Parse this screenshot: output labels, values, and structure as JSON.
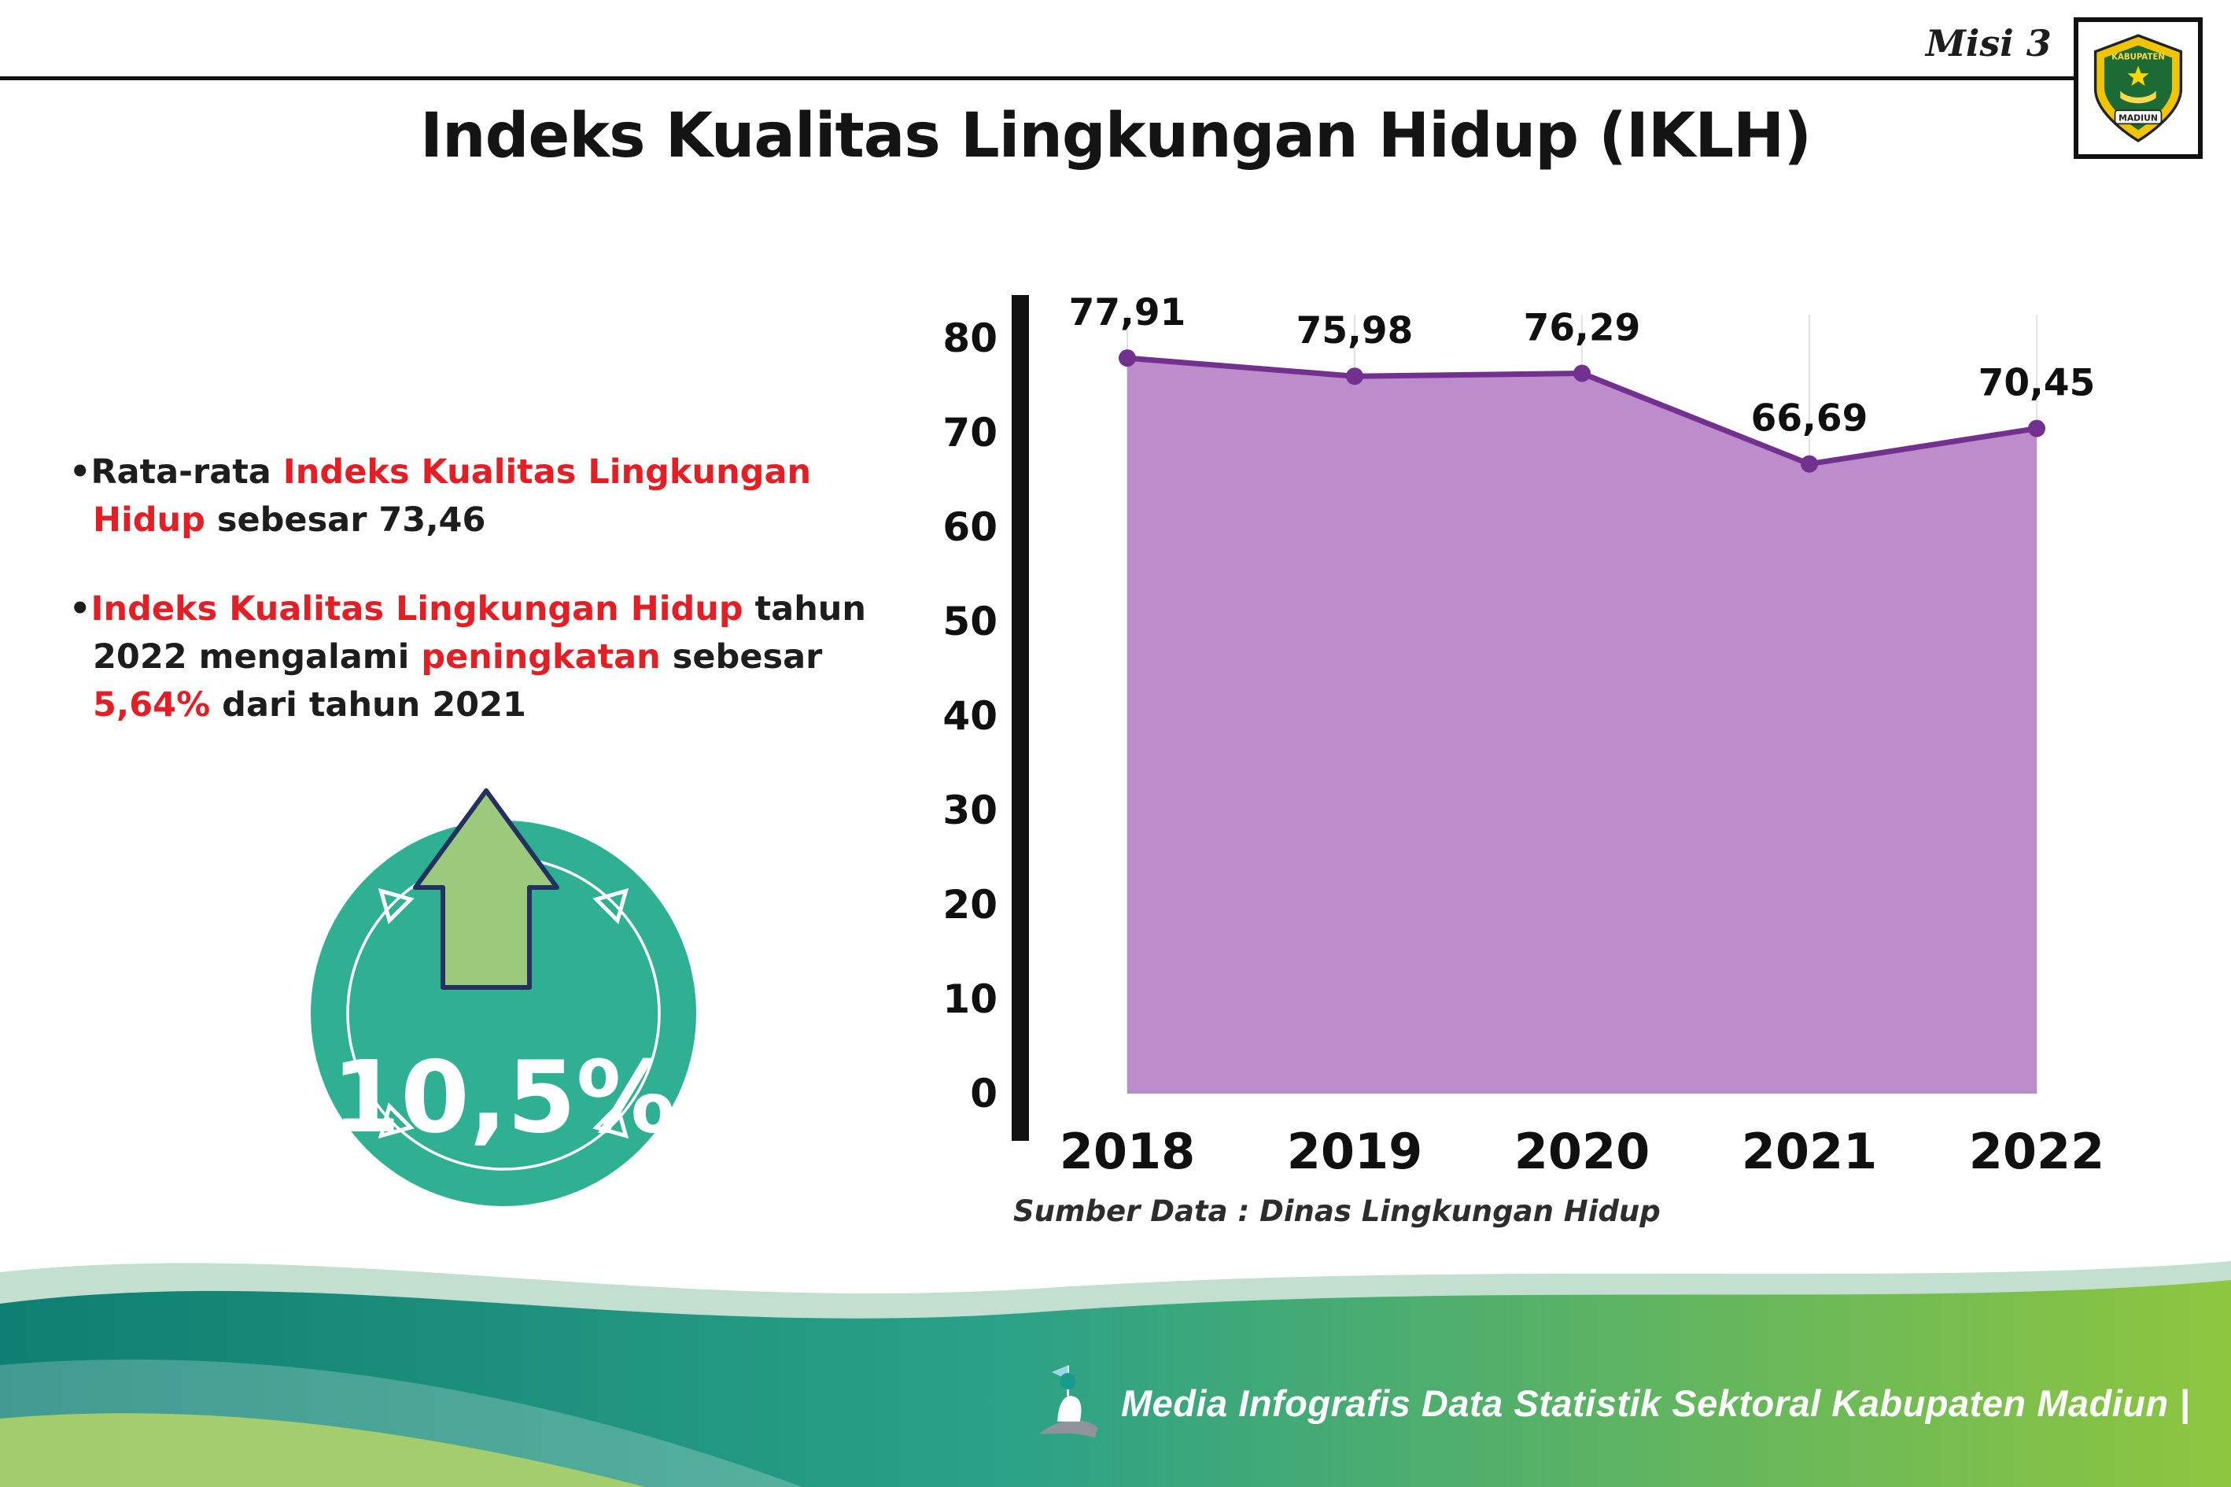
{
  "header": {
    "misi_label": "Misi 3",
    "title": "Indeks Kualitas Lingkungan Hidup (IKLH)",
    "logo": {
      "line1": "KABUPATEN",
      "line2": "MADIUN"
    }
  },
  "bullets": {
    "dot": "•",
    "bullet1": {
      "seg1": "Rata-rata ",
      "seg2": "Indeks Kualitas Lingkungan Hidup",
      "seg3": " sebesar 73,46"
    },
    "bullet2": {
      "seg1": "Indeks Kualitas Lingkungan Hidup",
      "seg2": " tahun 2022 mengalami ",
      "seg3": "peningkatan",
      "seg4": " sebesar ",
      "seg5": "5,64%",
      "seg6": " dari tahun 2021"
    }
  },
  "badge": {
    "value": "10,5%",
    "circle_color": "#2fb092",
    "arrow_color": "#9cca7d",
    "arrow_outline": "#233060"
  },
  "chart_data": {
    "type": "area",
    "title": "Indeks Kualitas Lingkungan Hidup (IKLH) 2018-2022",
    "categories": [
      "2018",
      "2019",
      "2020",
      "2021",
      "2022"
    ],
    "values": [
      77.91,
      75.98,
      76.29,
      66.69,
      70.45
    ],
    "value_labels": [
      "77,91",
      "75,98",
      "76,29",
      "66,69",
      "70,45"
    ],
    "xlabel": "",
    "ylabel": "",
    "ylim": [
      0,
      80
    ],
    "yticks": [
      0,
      10,
      20,
      30,
      40,
      50,
      60,
      70,
      80
    ],
    "grid": "vertical-light",
    "legend_position": "none",
    "line_color": "#72308f",
    "fill_color": "#bd8cca",
    "source_note": "Sumber Data : Dinas Lingkungan Hidup"
  },
  "footer": {
    "credit": "Media Infografis Data Statistik Sektoral Kabupaten Madiun |"
  },
  "theme": {
    "accent_red": "#e31e25",
    "teal": "#2fb092",
    "wave_left": "#0e7f72",
    "wave_right": "#8ec63f"
  }
}
